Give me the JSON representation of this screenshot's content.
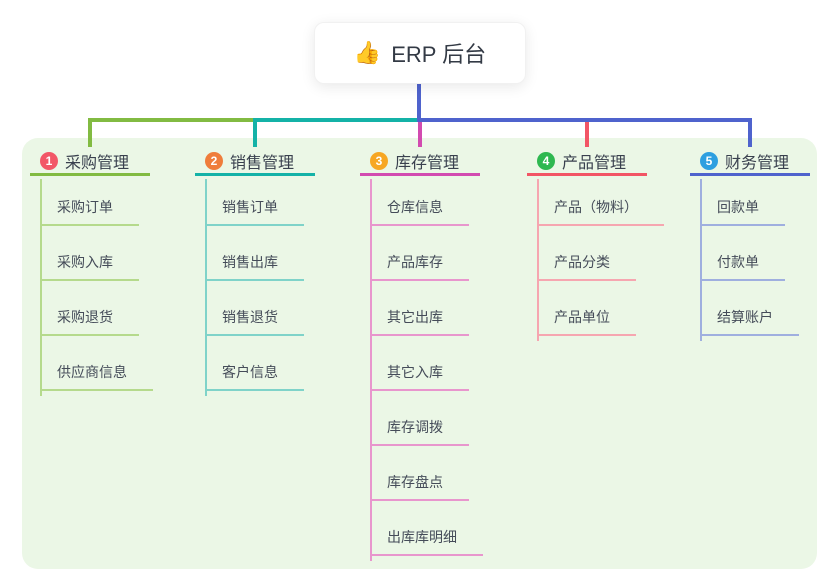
{
  "root": {
    "icon": "👍",
    "label": "ERP 后台"
  },
  "branches": [
    {
      "index": "1",
      "label": "采购管理",
      "badge_color": "#f25767",
      "line_color": "#82bb42",
      "light_color": "#b5da8c",
      "children": [
        "采购订单",
        "采购入库",
        "采购退货",
        "供应商信息"
      ]
    },
    {
      "index": "2",
      "label": "销售管理",
      "badge_color": "#ef7d3b",
      "line_color": "#14b2a7",
      "light_color": "#7fd3c9",
      "children": [
        "销售订单",
        "销售出库",
        "销售退货",
        "客户信息"
      ]
    },
    {
      "index": "3",
      "label": "库存管理",
      "badge_color": "#f7a723",
      "line_color": "#d24bb0",
      "light_color": "#e896cd",
      "children": [
        "仓库信息",
        "产品库存",
        "其它出库",
        "其它入库",
        "库存调拨",
        "库存盘点",
        "出库库明细"
      ]
    },
    {
      "index": "4",
      "label": "产品管理",
      "badge_color": "#2eb850",
      "line_color": "#f25565",
      "light_color": "#f6a6b0",
      "children": [
        "产品（物料）",
        "产品分类",
        "产品单位"
      ]
    },
    {
      "index": "5",
      "label": "财务管理",
      "badge_color": "#2d9fe0",
      "line_color": "#4f63cd",
      "light_color": "#9fafdf",
      "children": [
        "回款单",
        "付款单",
        "结算账户"
      ]
    }
  ],
  "colors": {
    "panel_background": "#ebf7e6",
    "root_line": "#4f63cd",
    "root_text": "#333a45",
    "branch_text": "#39404e",
    "child_text": "#454c59"
  }
}
